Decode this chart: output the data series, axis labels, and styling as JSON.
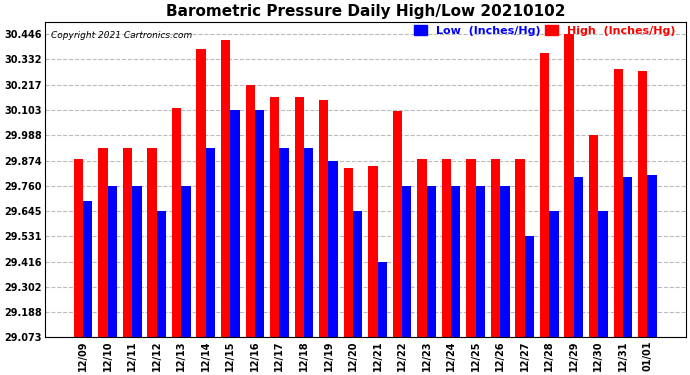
{
  "title": "Barometric Pressure Daily High/Low 20210102",
  "copyright": "Copyright 2021 Cartronics.com",
  "legend_low": "Low  (Inches/Hg)",
  "legend_high": "High  (Inches/Hg)",
  "categories": [
    "12/09",
    "12/10",
    "12/11",
    "12/12",
    "12/13",
    "12/14",
    "12/15",
    "12/16",
    "12/17",
    "12/18",
    "12/19",
    "12/20",
    "12/21",
    "12/22",
    "12/23",
    "12/24",
    "12/25",
    "12/26",
    "12/27",
    "12/28",
    "12/29",
    "12/30",
    "12/31",
    "01/01"
  ],
  "high_values": [
    29.88,
    29.93,
    29.93,
    29.93,
    30.11,
    30.38,
    30.42,
    30.217,
    30.16,
    30.16,
    30.15,
    29.84,
    29.85,
    30.1,
    29.88,
    29.88,
    29.88,
    29.88,
    29.88,
    30.36,
    30.446,
    29.99,
    30.29,
    30.28
  ],
  "low_values": [
    29.69,
    29.76,
    29.76,
    29.645,
    29.76,
    29.93,
    30.103,
    30.103,
    29.93,
    29.93,
    29.87,
    29.645,
    29.416,
    29.76,
    29.76,
    29.76,
    29.76,
    29.76,
    29.531,
    29.645,
    29.8,
    29.645,
    29.8,
    29.808
  ],
  "high_color": "#ff0000",
  "low_color": "#0000ff",
  "ylim_min": 29.073,
  "ylim_max": 30.503,
  "yticks": [
    29.073,
    29.188,
    29.302,
    29.416,
    29.531,
    29.645,
    29.76,
    29.874,
    29.988,
    30.103,
    30.217,
    30.332,
    30.446
  ],
  "bg_color": "#ffffff",
  "plot_bg_color": "#ffffff",
  "grid_color": "#bbbbbb",
  "title_fontsize": 11,
  "tick_fontsize": 7,
  "legend_fontsize": 8,
  "copyright_color": "#000000",
  "bar_width": 0.38
}
